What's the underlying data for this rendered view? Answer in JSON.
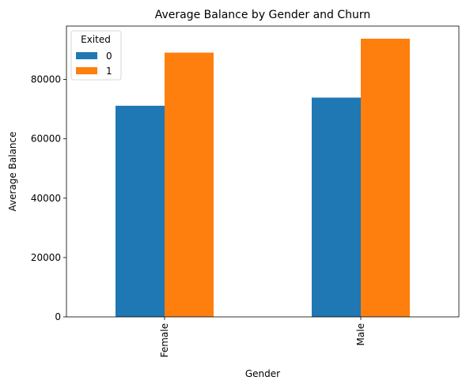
{
  "chart_data": {
    "type": "bar",
    "title": "Average Balance by Gender and Churn",
    "xlabel": "Gender",
    "ylabel": "Average Balance",
    "categories": [
      "Female",
      "Male"
    ],
    "series": [
      {
        "name": "0",
        "values": [
          71150,
          73900
        ],
        "color": "#1f77b4"
      },
      {
        "name": "1",
        "values": [
          89050,
          93750
        ],
        "color": "#ff7f0e"
      }
    ],
    "ylim": [
      0,
      98000
    ],
    "yticks": [
      0,
      20000,
      40000,
      60000,
      80000
    ],
    "legend": {
      "title": "Exited",
      "placement": "top-left"
    },
    "grid": false
  }
}
